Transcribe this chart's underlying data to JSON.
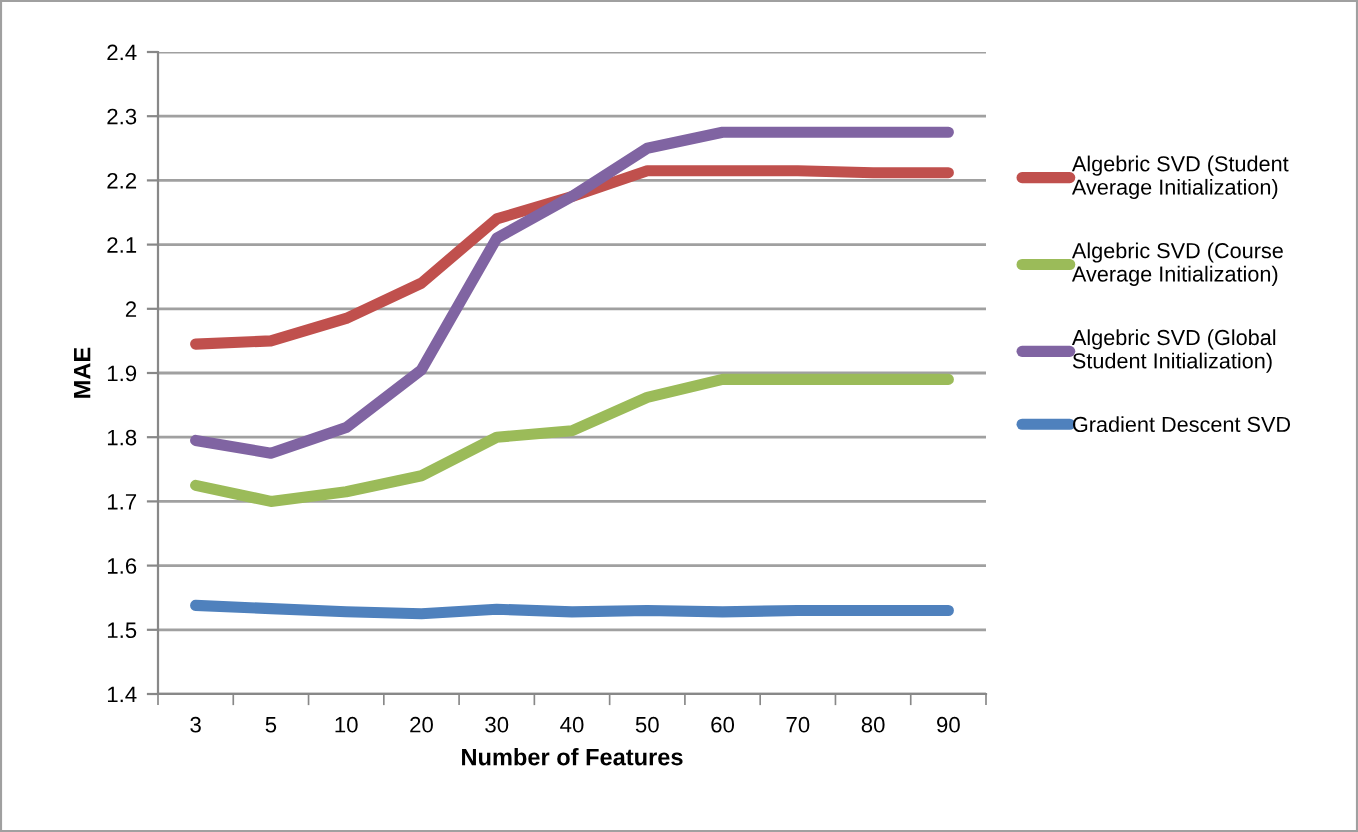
{
  "chart_data": {
    "type": "line",
    "xlabel": "Number of Features",
    "ylabel": "MAE",
    "categories": [
      "3",
      "5",
      "10",
      "20",
      "30",
      "40",
      "50",
      "60",
      "70",
      "80",
      "90"
    ],
    "series": [
      {
        "name": "Algebric SVD (Student\nAverage Initialization)",
        "color": "#c0504d",
        "values": [
          1.945,
          1.95,
          1.985,
          2.04,
          2.14,
          2.175,
          2.215,
          2.215,
          2.215,
          2.212,
          2.212
        ]
      },
      {
        "name": "Algebric SVD (Course\nAverage Initialization)",
        "color": "#9bbb59",
        "values": [
          1.725,
          1.7,
          1.715,
          1.74,
          1.8,
          1.81,
          1.862,
          1.89,
          1.89,
          1.89,
          1.89
        ]
      },
      {
        "name": "Algebric SVD (Global\nStudent Initialization)",
        "color": "#8064a2",
        "values": [
          1.795,
          1.775,
          1.815,
          1.905,
          2.11,
          2.175,
          2.25,
          2.275,
          2.275,
          2.275,
          2.275
        ]
      },
      {
        "name": "Gradient Descent SVD",
        "color": "#4f81bd",
        "values": [
          1.538,
          1.533,
          1.528,
          1.525,
          1.532,
          1.528,
          1.53,
          1.528,
          1.53,
          1.53,
          1.53
        ]
      }
    ],
    "ylim": [
      1.4,
      2.4
    ],
    "yticks": [
      1.4,
      1.5,
      1.6,
      1.7,
      1.8,
      1.9,
      2,
      2.1,
      2.2,
      2.3,
      2.4
    ],
    "grid": "y",
    "legend": "right",
    "marker": "none",
    "line_style": "solid"
  }
}
